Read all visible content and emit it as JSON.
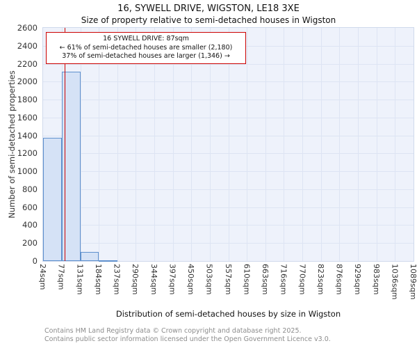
{
  "chart_data": {
    "type": "bar",
    "title": "16, SYWELL DRIVE, WIGSTON, LE18 3XE",
    "subtitle": "Size of property relative to semi-detached houses in Wigston",
    "xlabel": "Distribution of semi-detached houses by size in Wigston",
    "ylabel": "Number of semi-detached properties",
    "ylim": [
      0,
      2600
    ],
    "ytick_step": 200,
    "grid": true,
    "bin_edges_sqm": [
      24,
      77,
      131,
      184,
      237,
      290,
      344,
      397,
      450,
      503,
      557,
      610,
      663,
      716,
      770,
      823,
      876,
      929,
      983,
      1036,
      1089
    ],
    "x_tick_suffix": "sqm",
    "values": [
      1370,
      2110,
      100,
      10,
      0,
      0,
      0,
      0,
      0,
      0,
      0,
      0,
      0,
      0,
      0,
      0,
      0,
      0,
      0,
      0
    ],
    "marker": {
      "value_sqm": 87,
      "color": "#cc0000"
    },
    "annotation": {
      "line1": "16 SYWELL DRIVE: 87sqm",
      "line2": "← 61% of semi-detached houses are smaller (2,180)",
      "line3": "37% of semi-detached houses are larger (1,346) →"
    },
    "colors": {
      "plot_bg": "#eef2fb",
      "gridline": "#dde4f3",
      "bar_fill": "#d5e2f6",
      "bar_border": "#5e90cd",
      "marker_line": "#cc0000"
    }
  },
  "footer": {
    "line1": "Contains HM Land Registry data © Crown copyright and database right 2025.",
    "line2": "Contains public sector information licensed under the Open Government Licence v3.0."
  }
}
